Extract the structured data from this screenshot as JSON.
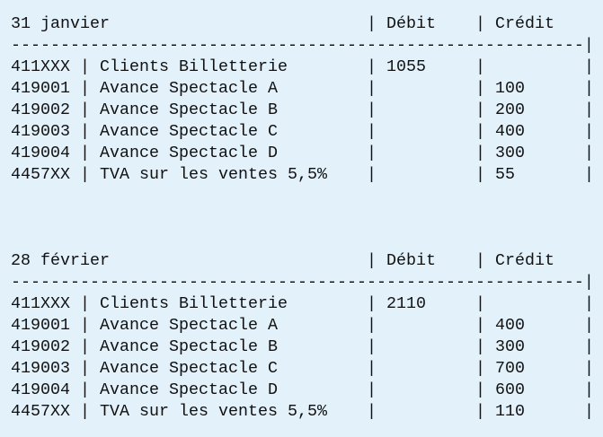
{
  "sections": [
    {
      "date": "31 janvier",
      "debit_header": "Débit",
      "credit_header": "Crédit",
      "rows": [
        {
          "account": "411XXX",
          "label": "Clients Billetterie",
          "debit": 1055
        },
        {
          "account": "419001",
          "label": "Avance Spectacle A",
          "credit": 100
        },
        {
          "account": "419002",
          "label": "Avance Spectacle B",
          "credit": 200
        },
        {
          "account": "419003",
          "label": "Avance Spectacle C",
          "credit": 400
        },
        {
          "account": "419004",
          "label": "Avance Spectacle D",
          "credit": 300
        },
        {
          "account": "4457XX",
          "label": "TVA sur les ventes 5,5%",
          "credit": 55
        }
      ]
    },
    {
      "date": "28 février",
      "debit_header": "Débit",
      "credit_header": "Crédit",
      "rows": [
        {
          "account": "411XXX",
          "label": "Clients Billetterie",
          "debit": 2110
        },
        {
          "account": "419001",
          "label": "Avance Spectacle A",
          "credit": 400
        },
        {
          "account": "419002",
          "label": "Avance Spectacle B",
          "credit": 300
        },
        {
          "account": "419003",
          "label": "Avance Spectacle C",
          "credit": 700
        },
        {
          "account": "419004",
          "label": "Avance Spectacle D",
          "credit": 600
        },
        {
          "account": "4457XX",
          "label": "TVA sur les ventes 5,5%",
          "credit": 110
        }
      ]
    }
  ]
}
